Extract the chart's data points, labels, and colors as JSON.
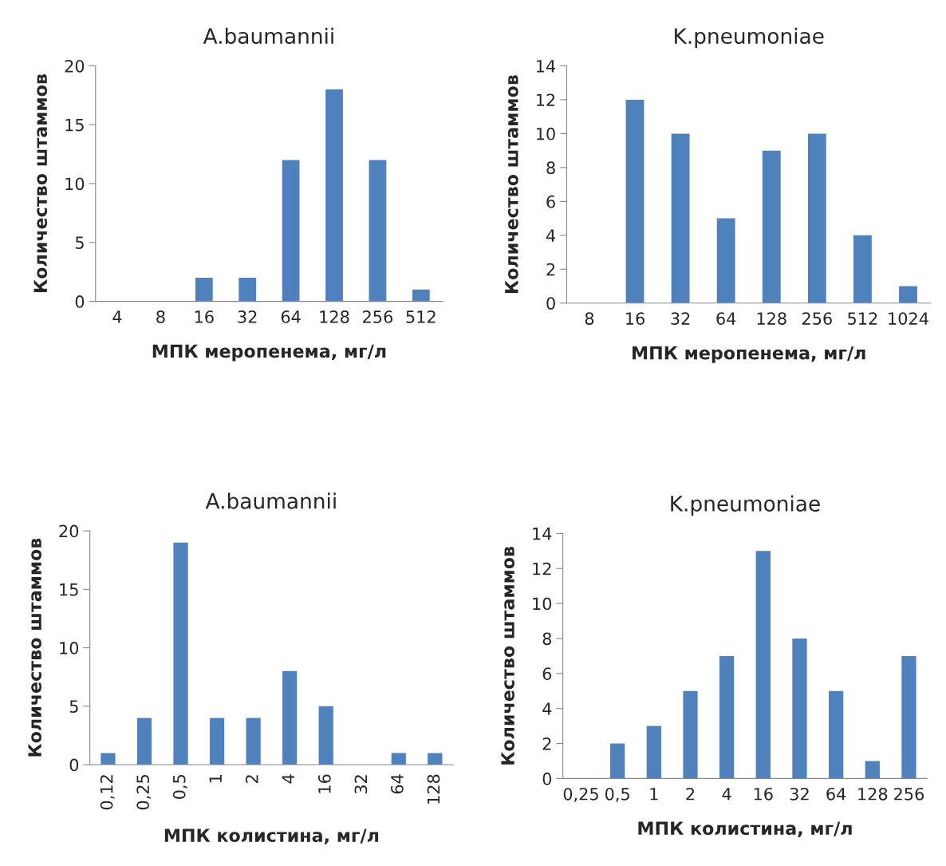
{
  "chart_data": [
    {
      "type": "bar",
      "title": "A.baumannii",
      "xlabel": "МПК меропенема, мг/л",
      "ylabel": "Количество штаммов",
      "categories": [
        "4",
        "8",
        "16",
        "32",
        "64",
        "128",
        "256",
        "512"
      ],
      "values": [
        0,
        0,
        2,
        2,
        12,
        18,
        12,
        1
      ],
      "color": "#4f81bd",
      "ylim": [
        0,
        20
      ],
      "yticks": [
        0,
        5,
        10,
        15,
        20
      ]
    },
    {
      "type": "bar",
      "title": "K.pneumoniae",
      "xlabel": "МПК меропенема, мг/л",
      "ylabel": "Количество штаммов",
      "categories": [
        "8",
        "16",
        "32",
        "64",
        "128",
        "256",
        "512",
        "1024"
      ],
      "values": [
        0,
        12,
        10,
        5,
        9,
        10,
        4,
        1
      ],
      "color": "#4f81bd",
      "ylim": [
        0,
        14
      ],
      "yticks": [
        0,
        2,
        4,
        6,
        8,
        10,
        12,
        14
      ]
    },
    {
      "type": "bar",
      "title": "A.baumannii",
      "xlabel": "МПК колистина, мг/л",
      "ylabel": "Количество штаммов",
      "categories": [
        "0,12",
        "0,25",
        "0,5",
        "1",
        "2",
        "4",
        "16",
        "32",
        "64",
        "128"
      ],
      "values": [
        1,
        4,
        19,
        4,
        4,
        8,
        5,
        0,
        1,
        1
      ],
      "color": "#4f81bd",
      "ylim": [
        0,
        20
      ],
      "yticks": [
        0,
        5,
        10,
        15,
        20
      ]
    },
    {
      "type": "bar",
      "title": "K.pneumoniae",
      "xlabel": "МПК колистина, мг/л",
      "ylabel": "Количество штаммов",
      "categories": [
        "0,25",
        "0,5",
        "1",
        "2",
        "4",
        "16",
        "32",
        "64",
        "128",
        "256"
      ],
      "values": [
        0,
        2,
        3,
        5,
        7,
        13,
        8,
        5,
        1,
        7
      ],
      "color": "#4f81bd",
      "ylim": [
        0,
        14
      ],
      "yticks": [
        0,
        2,
        4,
        6,
        8,
        10,
        12,
        14
      ]
    }
  ]
}
